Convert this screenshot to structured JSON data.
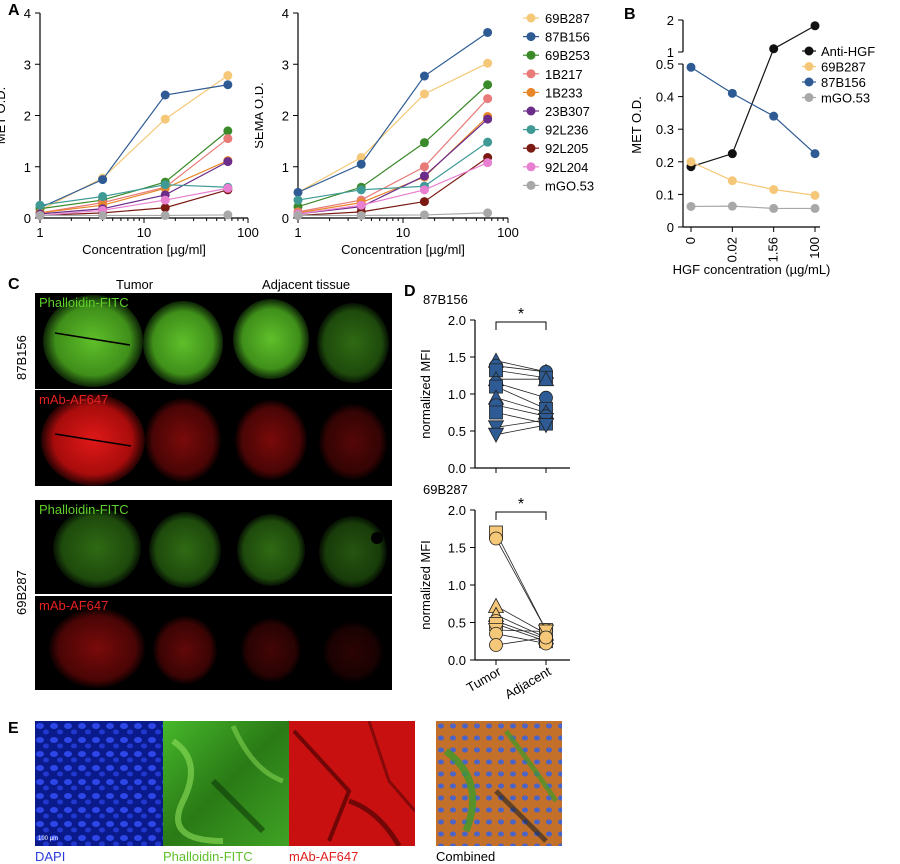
{
  "panels": {
    "a": "A",
    "b": "B",
    "c": "C",
    "d": "D",
    "e": "E"
  },
  "colors": {
    "69B287": "#f5c879",
    "87B156": "#2e5b94",
    "69B253": "#3b8a2a",
    "1B217": "#e87a78",
    "1B233": "#e8872a",
    "23B307": "#6b2c8a",
    "92L236": "#3f9a96",
    "92L205": "#7a1a12",
    "92L204": "#e87fd0",
    "mGO.53": "#a8a8a8",
    "Anti-HGF": "#111111"
  },
  "chart_data": [
    {
      "type": "line",
      "panel": "A-left",
      "xscale": "log",
      "xlim": [
        1,
        100
      ],
      "ylim": [
        0,
        4
      ],
      "xlabel": "Concentration [µg/ml]",
      "ylabel": "MET O.D.",
      "xticks": [
        "1",
        "10",
        "100"
      ],
      "yticks": [
        "0",
        "1",
        "2",
        "3",
        "4"
      ],
      "x": [
        1,
        4,
        16,
        64
      ],
      "series": [
        {
          "name": "69B287",
          "values": [
            0.15,
            0.78,
            1.93,
            2.78
          ]
        },
        {
          "name": "87B156",
          "values": [
            0.2,
            0.75,
            2.4,
            2.6
          ]
        },
        {
          "name": "69B253",
          "values": [
            0.18,
            0.35,
            0.7,
            1.7
          ]
        },
        {
          "name": "1B217",
          "values": [
            0.1,
            0.3,
            0.6,
            1.55
          ]
        },
        {
          "name": "1B233",
          "values": [
            0.1,
            0.25,
            0.58,
            1.12
          ]
        },
        {
          "name": "23B307",
          "values": [
            0.08,
            0.18,
            0.45,
            1.1
          ]
        },
        {
          "name": "92L236",
          "values": [
            0.25,
            0.42,
            0.65,
            0.6
          ]
        },
        {
          "name": "92L205",
          "values": [
            0.05,
            0.1,
            0.2,
            0.55
          ]
        },
        {
          "name": "92L204",
          "values": [
            0.05,
            0.15,
            0.35,
            0.58
          ]
        },
        {
          "name": "mGO.53",
          "values": [
            0.05,
            0.05,
            0.05,
            0.06
          ]
        }
      ]
    },
    {
      "type": "line",
      "panel": "A-right",
      "xscale": "log",
      "xlim": [
        1,
        100
      ],
      "ylim": [
        0,
        4
      ],
      "xlabel": "Concentration [µg/ml]",
      "ylabel": "SEMA O.D.",
      "xticks": [
        "1",
        "10",
        "100"
      ],
      "yticks": [
        "0",
        "1",
        "2",
        "3",
        "4"
      ],
      "x": [
        1,
        4,
        16,
        64
      ],
      "series": [
        {
          "name": "69B287",
          "values": [
            0.5,
            1.18,
            2.42,
            3.02
          ]
        },
        {
          "name": "87B156",
          "values": [
            0.5,
            1.05,
            2.77,
            3.62
          ]
        },
        {
          "name": "69B253",
          "values": [
            0.22,
            0.6,
            1.47,
            2.6
          ]
        },
        {
          "name": "1B217",
          "values": [
            0.12,
            0.35,
            1.0,
            2.33
          ]
        },
        {
          "name": "1B233",
          "values": [
            0.1,
            0.3,
            0.8,
            1.98
          ]
        },
        {
          "name": "23B307",
          "values": [
            0.08,
            0.22,
            0.82,
            1.93
          ]
        },
        {
          "name": "92L236",
          "values": [
            0.35,
            0.55,
            0.62,
            1.48
          ]
        },
        {
          "name": "92L205",
          "values": [
            0.05,
            0.12,
            0.32,
            1.18
          ]
        },
        {
          "name": "92L204",
          "values": [
            0.08,
            0.25,
            0.55,
            1.08
          ]
        },
        {
          "name": "mGO.53",
          "values": [
            0.05,
            0.05,
            0.06,
            0.1
          ]
        }
      ],
      "legend": "right"
    },
    {
      "type": "line",
      "panel": "B",
      "xlabel": "HGF concentration (µg/mL)",
      "ylabel": "MET O.D.",
      "categories": [
        "0",
        "0.02",
        "1.56",
        "100"
      ],
      "yaxis_break": true,
      "yticks_lower": [
        "0",
        "0.1",
        "0.2",
        "0.3",
        "0.4",
        "0.5"
      ],
      "yticks_upper": [
        "1",
        "2"
      ],
      "series": [
        {
          "name": "Anti-HGF",
          "values": [
            0.185,
            0.225,
            1.1,
            1.82
          ]
        },
        {
          "name": "69B287",
          "values": [
            0.2,
            0.142,
            0.115,
            0.097
          ]
        },
        {
          "name": "87B156",
          "values": [
            0.49,
            0.41,
            0.34,
            0.225
          ]
        },
        {
          "name": "mGO.53",
          "values": [
            0.063,
            0.064,
            0.057,
            0.057
          ]
        }
      ],
      "legend": "right"
    },
    {
      "type": "scatter",
      "panel": "D-top",
      "title": "87B156",
      "ylabel": "normalized MFI",
      "ylim": [
        0,
        2
      ],
      "yticks": [
        "0.0",
        "0.5",
        "1.0",
        "1.5",
        "2.0"
      ],
      "significance": "*",
      "pairs": [
        {
          "shape": "triangle-up",
          "tumor": 1.45,
          "adjacent": 1.3
        },
        {
          "shape": "circle",
          "tumor": 1.38,
          "adjacent": 1.3
        },
        {
          "shape": "square",
          "tumor": 1.32,
          "adjacent": 1.22
        },
        {
          "shape": "triangle-up",
          "tumor": 1.2,
          "adjacent": 1.2
        },
        {
          "shape": "circle",
          "tumor": 1.15,
          "adjacent": 0.95
        },
        {
          "shape": "square",
          "tumor": 1.1,
          "adjacent": 0.8
        },
        {
          "shape": "triangle-up",
          "tumor": 0.95,
          "adjacent": 0.75
        },
        {
          "shape": "circle",
          "tumor": 0.85,
          "adjacent": 0.7
        },
        {
          "shape": "square",
          "tumor": 0.75,
          "adjacent": 0.6
        },
        {
          "shape": "triangle-down",
          "tumor": 0.55,
          "adjacent": 0.65
        },
        {
          "shape": "triangle-down",
          "tumor": 0.45,
          "adjacent": 0.58
        }
      ]
    },
    {
      "type": "scatter",
      "panel": "D-bottom",
      "title": "69B287",
      "ylabel": "normalized MFI",
      "ylim": [
        0,
        2
      ],
      "yticks": [
        "0.0",
        "0.5",
        "1.0",
        "1.5",
        "2.0"
      ],
      "categories": [
        "Tumor",
        "Adjacent"
      ],
      "significance": "*",
      "pairs": [
        {
          "shape": "square",
          "tumor": 1.7,
          "adjacent": 0.4
        },
        {
          "shape": "circle",
          "tumor": 1.62,
          "adjacent": 0.4
        },
        {
          "shape": "triangle-up",
          "tumor": 0.72,
          "adjacent": 0.35
        },
        {
          "shape": "triangle-up",
          "tumor": 0.6,
          "adjacent": 0.3
        },
        {
          "shape": "circle",
          "tumor": 0.52,
          "adjacent": 0.28
        },
        {
          "shape": "square",
          "tumor": 0.48,
          "adjacent": 0.25
        },
        {
          "shape": "triangle-down",
          "tumor": 0.4,
          "adjacent": 0.38
        },
        {
          "shape": "circle",
          "tumor": 0.35,
          "adjacent": 0.22
        },
        {
          "shape": "circle",
          "tumor": 0.2,
          "adjacent": 0.3
        }
      ]
    }
  ],
  "panel_c": {
    "col_tumor": "Tumor",
    "col_adjacent": "Adjacent tissue",
    "row1_label": "87B156",
    "row2_label": "69B287",
    "green_label": "Phalloidin-FITC",
    "red_label": "mAb-AF647"
  },
  "panel_e": {
    "dapi": "DAPI",
    "phalloidin": "Phalloidin-FITC",
    "mab": "mAb-AF647",
    "combined": "Combined",
    "scalebar": "100 µm"
  }
}
